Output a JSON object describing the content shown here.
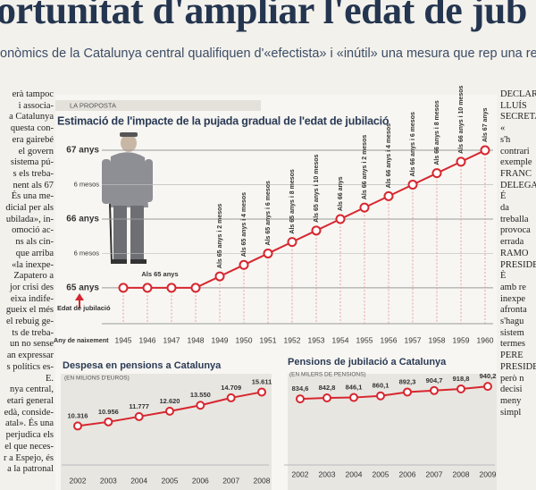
{
  "headline": "ortunitat d'ampliar l'edat de jub",
  "subheadline": "onòmics de la Catalunya central qualifiquen d'«efectista» i «inútil» una mesura que rep una re",
  "section_label": "LA PROPOSTA",
  "left_column": [
    "erà tampoc",
    "i associa-",
    "a Catalunya",
    "questa con-",
    "era gairebé",
    "el govern",
    "sistema pú-",
    "s els treba-",
    "nent als 67",
    "És una me-",
    "dicial per als",
    "ubilada», in-",
    "omoció ac-",
    "ns als cin-",
    "que arriba",
    "«la inexpe-",
    "Zapatero a",
    "jor crisi des",
    "eixa indife-",
    "gueix el més",
    "el rebuig ge-",
    "ts de treba-",
    "un no sense",
    "an expressar",
    "s polítics es-",
    "E.",
    "nya central,",
    "etari general",
    "edà, conside-",
    "atal». És una",
    "perjudica els",
    "el que neces-",
    "r a Espejo, és",
    "a la patronal"
  ],
  "right_column": [
    "DECLAR",
    "LLUÍS",
    "SECRETARI",
    "«",
    "s'h",
    "contrari",
    "exemple",
    "FRANC",
    "DELEGAT T",
    "É",
    "da",
    "treballa",
    "provoca",
    "errada",
    "RAMO",
    "PRESIDENT",
    "È",
    "amb re",
    "inexpe",
    "afronta",
    "s'hagu",
    "sistem",
    "termes",
    "PERE",
    "PRESIDEN",
    "però n",
    "decisi",
    "meny",
    "simpl"
  ],
  "chart_data": [
    {
      "type": "line",
      "title": "Estimació de l'impacte de la pujada gradual de l'edat de jubilació",
      "y_axis_label": "Edat de jubilació",
      "x_axis_label": "Any de naixement",
      "color": "#d7262f",
      "categories": [
        "1945",
        "1946",
        "1947",
        "1948",
        "1949",
        "1950",
        "1951",
        "1952",
        "1953",
        "1954",
        "1955",
        "1956",
        "1957",
        "1958",
        "1959",
        "1960"
      ],
      "values": [
        65,
        65,
        65,
        65,
        65.167,
        65.333,
        65.5,
        65.667,
        65.833,
        66,
        66.167,
        66.333,
        66.5,
        66.667,
        66.833,
        67
      ],
      "value_labels": [
        null,
        "Als 65 anys",
        null,
        null,
        "Als 65 anys i 2 mesos",
        "Als 65 anys i 4 mesos",
        "Als 65 anys i 6 mesos",
        "Als 65 anys i 8 mesos",
        "Als 65 anys i 10 mesos",
        "Als 66 anys",
        "Als 66 anys i 2 mesos",
        "Als 66 anys i 4 mesos",
        "Als 66 anys i 6 mesos",
        "Als 66 anys i 8 mesos",
        "Als 66 anys i 10 mesos",
        "Als 67 anys"
      ],
      "ylim": [
        64.7,
        67.15
      ],
      "yticks": [
        {
          "value": 65,
          "label": "65 anys"
        },
        {
          "value": 65.5,
          "label": "6 mesos"
        },
        {
          "value": 66,
          "label": "66 anys"
        },
        {
          "value": 66.5,
          "label": "6 mesos"
        },
        {
          "value": 67,
          "label": "67 anys"
        }
      ],
      "grid": true
    },
    {
      "type": "line",
      "title": "Despesa en pensions a Catalunya",
      "subtitle": "(EN MILIONS D'EUROS)",
      "color": "#d7262f",
      "categories": [
        "2002",
        "2003",
        "2004",
        "2005",
        "2006",
        "2007",
        "2008"
      ],
      "values": [
        10316,
        10956,
        11777,
        12620,
        13550,
        14709,
        15611
      ],
      "value_labels": [
        "10.316",
        "10.956",
        "11.777",
        "12.620",
        "13.550",
        "14.709",
        "15.611"
      ],
      "ylim": [
        8000,
        20000
      ]
    },
    {
      "type": "line",
      "title": "Pensions de jubilació a Catalunya",
      "subtitle": "(EN MILERS DE PENSIONS)",
      "color": "#d7262f",
      "categories": [
        "2002",
        "2003",
        "2004",
        "2005",
        "2006",
        "2007",
        "2008",
        "2009"
      ],
      "values": [
        834.6,
        842.8,
        846.1,
        860.1,
        892.3,
        904.7,
        918.8,
        940.2
      ],
      "value_labels": [
        "834,6",
        "842,8",
        "846,1",
        "860,1",
        "892,3",
        "904,7",
        "918,8",
        "940,2"
      ],
      "ylim": [
        480,
        1130
      ]
    }
  ]
}
